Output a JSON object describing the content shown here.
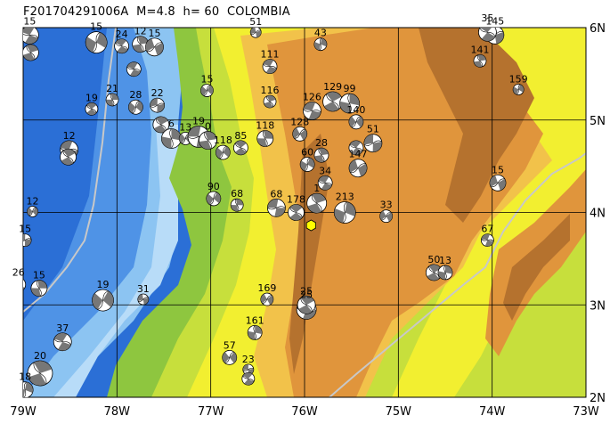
{
  "title": "F201704291006A  M=4.8  h= 60  COLOMBIA",
  "lon_range": [
    -79,
    -73
  ],
  "lat_range": [
    2,
    6
  ],
  "lon_ticks": [
    {
      "v": -79,
      "label": "79W"
    },
    {
      "v": -78,
      "label": "78W"
    },
    {
      "v": -77,
      "label": "77W"
    },
    {
      "v": -76,
      "label": "76W"
    },
    {
      "v": -75,
      "label": "75W"
    },
    {
      "v": -74,
      "label": "74W"
    },
    {
      "v": -73,
      "label": "73W"
    }
  ],
  "lat_ticks": [
    {
      "v": 6,
      "label": "6N"
    },
    {
      "v": 5,
      "label": "5N"
    },
    {
      "v": 4,
      "label": "4N"
    },
    {
      "v": 3,
      "label": "3N"
    },
    {
      "v": 2,
      "label": "2N"
    }
  ],
  "colors": {
    "deep_ocean": "#2b6fd6",
    "mid_ocean": "#4f93e6",
    "shallow_ocean": "#8cc4f2",
    "shelf": "#b8dcf8",
    "lowland": "#8ec63f",
    "low_hills": "#c7df3c",
    "hills": "#f2ef30",
    "upland": "#f2c24a",
    "mountain": "#e0953c",
    "high": "#b5722e",
    "river": "#c8c8c8",
    "event": "#ffff00"
  },
  "epicenter": {
    "lon": -75.93,
    "lat": 3.86
  },
  "mechanisms": [
    {
      "lon": -78.93,
      "lat": 5.92,
      "label": "15",
      "size": 1.0,
      "rot": 20
    },
    {
      "lon": -78.92,
      "lat": 5.73,
      "label": "",
      "size": 0.9,
      "rot": 60
    },
    {
      "lon": -78.22,
      "lat": 5.84,
      "label": "15",
      "size": 1.2,
      "rot": 110
    },
    {
      "lon": -77.95,
      "lat": 5.8,
      "label": "24",
      "size": 0.8,
      "rot": 30
    },
    {
      "lon": -77.75,
      "lat": 5.82,
      "label": "12",
      "size": 0.9,
      "rot": 70
    },
    {
      "lon": -77.6,
      "lat": 5.79,
      "label": "15",
      "size": 1.0,
      "rot": 150
    },
    {
      "lon": -77.82,
      "lat": 5.55,
      "label": "",
      "size": 0.8,
      "rot": 200
    },
    {
      "lon": -78.27,
      "lat": 5.12,
      "label": "19",
      "size": 0.7,
      "rot": 40
    },
    {
      "lon": -78.05,
      "lat": 5.22,
      "label": "21",
      "size": 0.7,
      "rot": 80
    },
    {
      "lon": -77.8,
      "lat": 5.14,
      "label": "28",
      "size": 0.8,
      "rot": 120
    },
    {
      "lon": -77.57,
      "lat": 5.16,
      "label": "22",
      "size": 0.8,
      "rot": 170
    },
    {
      "lon": -77.53,
      "lat": 4.95,
      "label": "",
      "size": 0.9,
      "rot": 230
    },
    {
      "lon": -77.42,
      "lat": 4.8,
      "label": "6",
      "size": 1.1,
      "rot": 90
    },
    {
      "lon": -78.51,
      "lat": 4.68,
      "label": "12",
      "size": 1.0,
      "rot": 10
    },
    {
      "lon": -78.52,
      "lat": 4.6,
      "label": "",
      "size": 0.9,
      "rot": 50
    },
    {
      "lon": -77.27,
      "lat": 4.8,
      "label": "13",
      "size": 0.7,
      "rot": 130
    },
    {
      "lon": -77.13,
      "lat": 4.82,
      "label": "19",
      "size": 1.2,
      "rot": 180
    },
    {
      "lon": -77.03,
      "lat": 4.78,
      "label": "0",
      "size": 1.0,
      "rot": 250
    },
    {
      "lon": -76.87,
      "lat": 4.65,
      "label": "118",
      "size": 0.8,
      "rot": 300
    },
    {
      "lon": -76.68,
      "lat": 4.7,
      "label": "85",
      "size": 0.8,
      "rot": 40
    },
    {
      "lon": -76.42,
      "lat": 4.8,
      "label": "118",
      "size": 0.9,
      "rot": 80
    },
    {
      "lon": -77.04,
      "lat": 5.32,
      "label": "15",
      "size": 0.7,
      "rot": 120
    },
    {
      "lon": -76.52,
      "lat": 5.95,
      "label": "51",
      "size": 0.6,
      "rot": 160
    },
    {
      "lon": -76.37,
      "lat": 5.58,
      "label": "111",
      "size": 0.8,
      "rot": 200
    },
    {
      "lon": -76.37,
      "lat": 5.2,
      "label": "116",
      "size": 0.7,
      "rot": 240
    },
    {
      "lon": -75.83,
      "lat": 5.82,
      "label": "43",
      "size": 0.7,
      "rot": 280
    },
    {
      "lon": -76.05,
      "lat": 4.85,
      "label": "128",
      "size": 0.8,
      "rot": 320
    },
    {
      "lon": -75.92,
      "lat": 5.1,
      "label": "126",
      "size": 1.0,
      "rot": 10
    },
    {
      "lon": -75.7,
      "lat": 5.2,
      "label": "129",
      "size": 1.1,
      "rot": 50
    },
    {
      "lon": -75.52,
      "lat": 5.18,
      "label": "99",
      "size": 1.1,
      "rot": 90
    },
    {
      "lon": -75.45,
      "lat": 4.98,
      "label": "140",
      "size": 0.8,
      "rot": 130
    },
    {
      "lon": -75.27,
      "lat": 4.75,
      "label": "51",
      "size": 1.0,
      "rot": 170
    },
    {
      "lon": -75.45,
      "lat": 4.7,
      "label": "",
      "size": 0.8,
      "rot": 210
    },
    {
      "lon": -75.82,
      "lat": 4.62,
      "label": "28",
      "size": 0.8,
      "rot": 250
    },
    {
      "lon": -75.97,
      "lat": 4.52,
      "label": "60",
      "size": 0.8,
      "rot": 290
    },
    {
      "lon": -75.43,
      "lat": 4.48,
      "label": "147",
      "size": 1.0,
      "rot": 330
    },
    {
      "lon": -75.78,
      "lat": 4.32,
      "label": "34",
      "size": 0.8,
      "rot": 20
    },
    {
      "lon": -75.87,
      "lat": 4.1,
      "label": "1",
      "size": 1.1,
      "rot": 60
    },
    {
      "lon": -75.57,
      "lat": 4.0,
      "label": "213",
      "size": 1.2,
      "rot": 100
    },
    {
      "lon": -75.13,
      "lat": 3.96,
      "label": "33",
      "size": 0.7,
      "rot": 140
    },
    {
      "lon": -76.3,
      "lat": 4.05,
      "label": "68",
      "size": 1.0,
      "rot": 180
    },
    {
      "lon": -76.09,
      "lat": 4.0,
      "label": "178",
      "size": 0.9,
      "rot": 220
    },
    {
      "lon": -76.72,
      "lat": 4.08,
      "label": "68",
      "size": 0.7,
      "rot": 260
    },
    {
      "lon": -76.97,
      "lat": 4.15,
      "label": "90",
      "size": 0.8,
      "rot": 300
    },
    {
      "lon": -73.97,
      "lat": 5.92,
      "label": "145",
      "size": 1.0,
      "rot": 340
    },
    {
      "lon": -74.05,
      "lat": 5.95,
      "label": "35",
      "size": 1.0,
      "rot": 30
    },
    {
      "lon": -74.13,
      "lat": 5.64,
      "label": "141",
      "size": 0.7,
      "rot": 70
    },
    {
      "lon": -73.72,
      "lat": 5.33,
      "label": "159",
      "size": 0.6,
      "rot": 110
    },
    {
      "lon": -73.94,
      "lat": 4.32,
      "label": "15",
      "size": 0.9,
      "rot": 150
    },
    {
      "lon": -74.05,
      "lat": 3.7,
      "label": "67",
      "size": 0.7,
      "rot": 190
    },
    {
      "lon": -74.62,
      "lat": 3.35,
      "label": "50",
      "size": 0.9,
      "rot": 230
    },
    {
      "lon": -74.5,
      "lat": 3.35,
      "label": "13",
      "size": 0.8,
      "rot": 270
    },
    {
      "lon": -78.9,
      "lat": 4.01,
      "label": "12",
      "size": 0.6,
      "rot": 310
    },
    {
      "lon": -78.98,
      "lat": 3.7,
      "label": "15",
      "size": 0.7,
      "rot": 350
    },
    {
      "lon": -79.05,
      "lat": 3.22,
      "label": "26",
      "size": 0.8,
      "rot": 40
    },
    {
      "lon": -78.83,
      "lat": 3.18,
      "label": "15",
      "size": 0.9,
      "rot": 80
    },
    {
      "lon": -78.15,
      "lat": 3.05,
      "label": "19",
      "size": 1.2,
      "rot": 120
    },
    {
      "lon": -77.72,
      "lat": 3.06,
      "label": "31",
      "size": 0.6,
      "rot": 160
    },
    {
      "lon": -78.58,
      "lat": 2.6,
      "label": "37",
      "size": 1.0,
      "rot": 200
    },
    {
      "lon": -78.82,
      "lat": 2.26,
      "label": "20",
      "size": 1.4,
      "rot": 240
    },
    {
      "lon": -78.98,
      "lat": 2.08,
      "label": "18",
      "size": 0.9,
      "rot": 280
    },
    {
      "lon": -76.4,
      "lat": 3.06,
      "label": "169",
      "size": 0.7,
      "rot": 320
    },
    {
      "lon": -75.98,
      "lat": 2.95,
      "label": "25",
      "size": 1.1,
      "rot": 10
    },
    {
      "lon": -75.98,
      "lat": 3.0,
      "label": "25",
      "size": 1.0,
      "rot": 50
    },
    {
      "lon": -76.53,
      "lat": 2.7,
      "label": "161",
      "size": 0.8,
      "rot": 90
    },
    {
      "lon": -76.8,
      "lat": 2.43,
      "label": "57",
      "size": 0.8,
      "rot": 130
    },
    {
      "lon": -76.6,
      "lat": 2.3,
      "label": "23",
      "size": 0.6,
      "rot": 170
    },
    {
      "lon": -76.6,
      "lat": 2.2,
      "label": "",
      "size": 0.7,
      "rot": 210
    }
  ]
}
